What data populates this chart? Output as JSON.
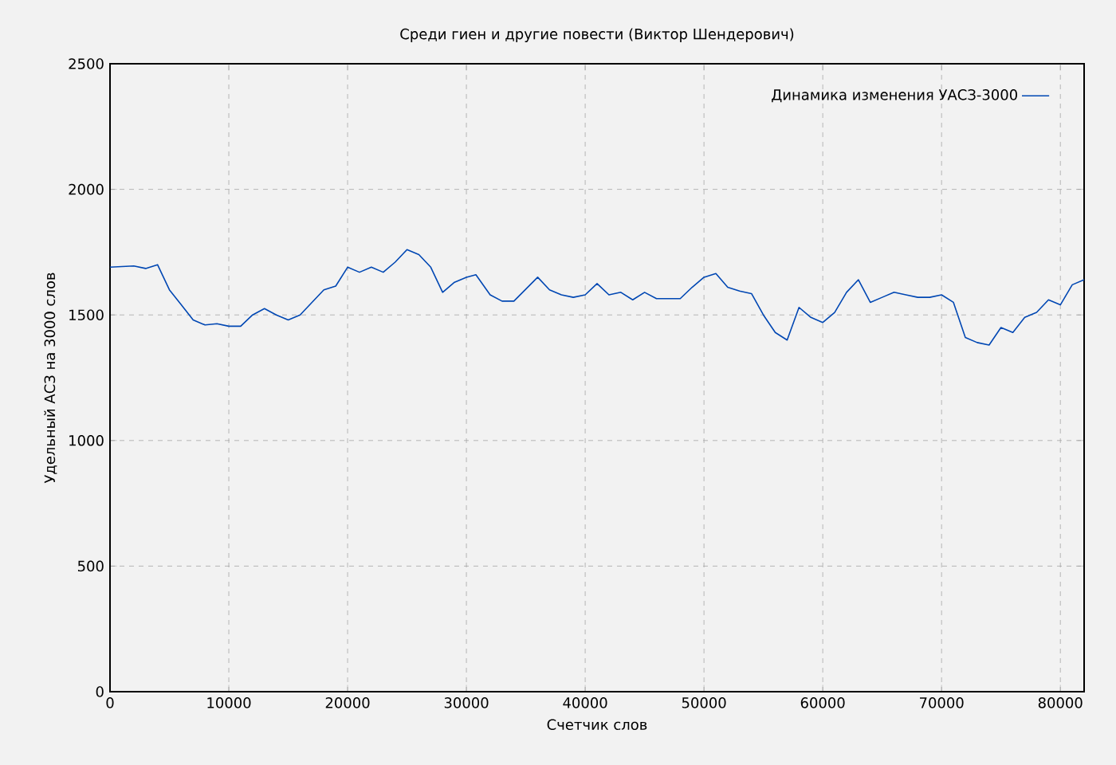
{
  "chart_data": {
    "type": "line",
    "title": "Среди гиен и другие повести (Виктор Шендерович)",
    "xlabel": "Счетчик слов",
    "ylabel": "Удельный АСЗ на 3000 слов",
    "x": [
      0,
      2000,
      3000,
      4000,
      5000,
      6000,
      7000,
      8000,
      9000,
      10000,
      11000,
      12000,
      13000,
      14000,
      15000,
      16000,
      17000,
      18000,
      19000,
      20000,
      21000,
      22000,
      23000,
      24000,
      25000,
      26000,
      27000,
      28000,
      29000,
      30000,
      30800,
      32000,
      33000,
      34000,
      36000,
      37000,
      38000,
      39000,
      40000,
      41000,
      42000,
      43000,
      44000,
      45000,
      46000,
      48000,
      49000,
      50000,
      51000,
      52000,
      53000,
      54000,
      55000,
      56000,
      57000,
      58000,
      59000,
      60000,
      61000,
      62000,
      63000,
      64000,
      65000,
      66000,
      67000,
      68000,
      69000,
      70000,
      71000,
      72000,
      73000,
      74000,
      75000,
      76000,
      77000,
      78000,
      79000,
      80000,
      81000,
      82000
    ],
    "series": [
      {
        "name": "Динамика изменения УАСЗ-3000",
        "color": "#0047b3",
        "values": [
          1690,
          1695,
          1685,
          1700,
          1600,
          1540,
          1480,
          1460,
          1465,
          1455,
          1455,
          1500,
          1525,
          1500,
          1480,
          1500,
          1550,
          1600,
          1615,
          1690,
          1670,
          1690,
          1670,
          1710,
          1760,
          1740,
          1690,
          1590,
          1630,
          1650,
          1660,
          1580,
          1555,
          1555,
          1650,
          1600,
          1580,
          1570,
          1580,
          1625,
          1580,
          1590,
          1560,
          1590,
          1565,
          1565,
          1610,
          1650,
          1665,
          1610,
          1595,
          1585,
          1500,
          1430,
          1400,
          1530,
          1490,
          1470,
          1510,
          1590,
          1640,
          1550,
          1570,
          1590,
          1580,
          1570,
          1570,
          1580,
          1550,
          1410,
          1390,
          1380,
          1450,
          1430,
          1490,
          1510,
          1560,
          1540,
          1620,
          1640
        ]
      }
    ],
    "xlim": [
      0,
      82000
    ],
    "ylim": [
      0,
      2500
    ],
    "xticks": [
      0,
      10000,
      20000,
      30000,
      40000,
      50000,
      60000,
      70000,
      80000
    ],
    "yticks": [
      0,
      500,
      1000,
      1500,
      2000,
      2500
    ],
    "grid": true,
    "legend": "top right",
    "marker": "none",
    "line_style": "solid"
  }
}
